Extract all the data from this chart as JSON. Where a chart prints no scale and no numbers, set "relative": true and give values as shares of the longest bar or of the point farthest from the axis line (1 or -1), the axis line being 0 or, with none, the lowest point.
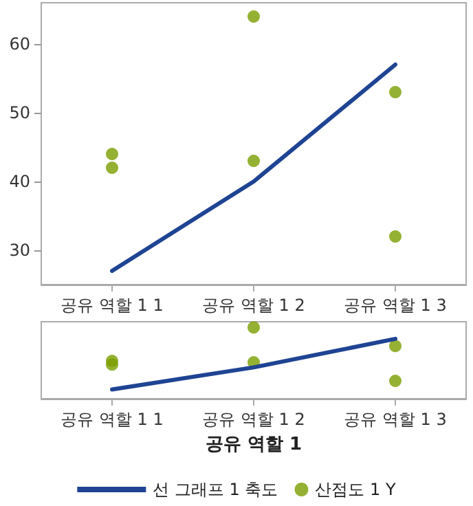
{
  "chart_data": [
    {
      "type": "line",
      "categories": [
        "공유 역할 1 1",
        "공유 역할 1 2",
        "공유 역할 1 3"
      ],
      "ylim": [
        25,
        66
      ],
      "yticks": [
        30,
        40,
        50,
        60
      ],
      "grid": false,
      "series": [
        {
          "color": "#1f4493",
          "marker": "none",
          "values": [
            27,
            40,
            57
          ]
        },
        {
          "type": "scatter",
          "color": "#7a9e00",
          "marker": "circle",
          "x": [
            "공유 역할 1 1",
            "공유 역할 1 1",
            "공유 역할 1 2",
            "공유 역할 1 2",
            "공유 역할 1 3",
            "공유 역할 1 3"
          ],
          "values": [
            44,
            42,
            64,
            43,
            53,
            32
          ]
        }
      ]
    },
    {
      "type": "line",
      "categories": [
        "공유 역할 1 1",
        "공유 역할 1 2",
        "공유 역할 1 3"
      ],
      "relative": true,
      "tick_labels": "x",
      "xlabel": "공유 역할 1",
      "legend": "bottom",
      "grid": false,
      "series": [
        {
          "name": "선 그래프 1 축도",
          "color": "#1f4493",
          "marker": "none",
          "values": [
            0.13,
            0.44,
            0.84
          ]
        },
        {
          "type": "scatter",
          "name": "산점도 1 Y",
          "color": "#7a9e00",
          "marker": "circle",
          "x": [
            "공유 역할 1 1",
            "공유 역할 1 1",
            "공유 역할 1 2",
            "공유 역할 1 2",
            "공유 역할 1 3",
            "공유 역할 1 3"
          ],
          "values": [
            0.53,
            0.48,
            1,
            0.51,
            0.74,
            0.25
          ]
        }
      ]
    }
  ]
}
